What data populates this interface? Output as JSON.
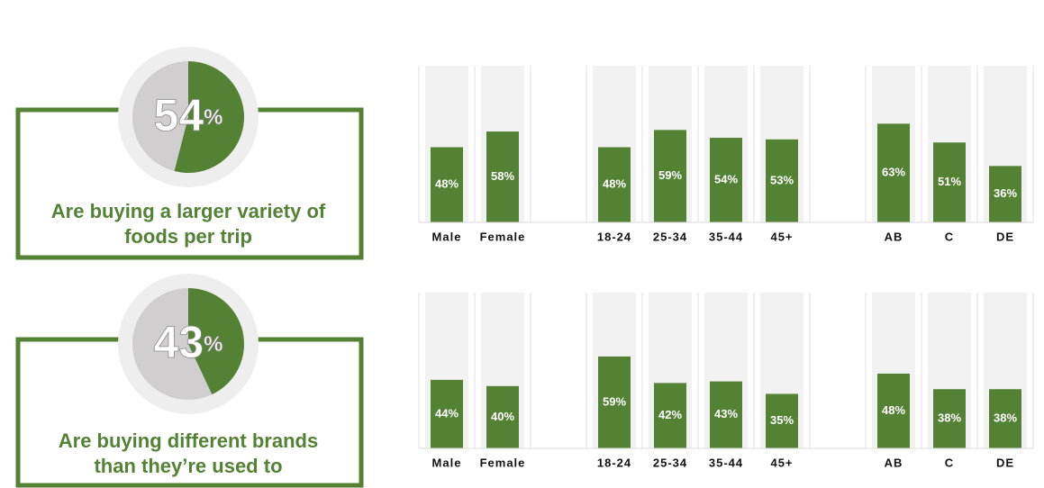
{
  "chart_data": [
    {
      "type": "pie",
      "values": [
        54
      ],
      "value_labels": [
        "54%"
      ],
      "color": "#548235",
      "caption": [
        "Are buying a larger variety of",
        "foods per trip"
      ]
    },
    {
      "type": "bar",
      "categories": [
        "Male",
        "Female",
        null,
        "18-24",
        "25-34",
        "35-44",
        "45+",
        null,
        "AB",
        "C",
        "DE"
      ],
      "values": [
        48,
        58,
        null,
        48,
        59,
        54,
        53,
        null,
        63,
        51,
        36
      ],
      "value_labels": [
        "48%",
        "58%",
        null,
        "48%",
        "59%",
        "54%",
        "53%",
        null,
        "63%",
        "51%",
        "36%"
      ],
      "color": "#548235",
      "ylim": [
        0,
        100
      ]
    },
    {
      "type": "pie",
      "values": [
        43
      ],
      "value_labels": [
        "43%"
      ],
      "color": "#548235",
      "caption": [
        "Are buying different brands",
        "than they’re used to"
      ]
    },
    {
      "type": "bar",
      "categories": [
        "Male",
        "Female",
        null,
        "18-24",
        "25-34",
        "35-44",
        "45+",
        null,
        "AB",
        "C",
        "DE"
      ],
      "values": [
        44,
        40,
        null,
        59,
        42,
        43,
        35,
        null,
        48,
        38,
        38
      ],
      "value_labels": [
        "44%",
        "40%",
        null,
        "59%",
        "42%",
        "43%",
        "35%",
        null,
        "48%",
        "38%",
        "38%"
      ],
      "color": "#548235",
      "ylim": [
        0,
        100
      ]
    }
  ]
}
